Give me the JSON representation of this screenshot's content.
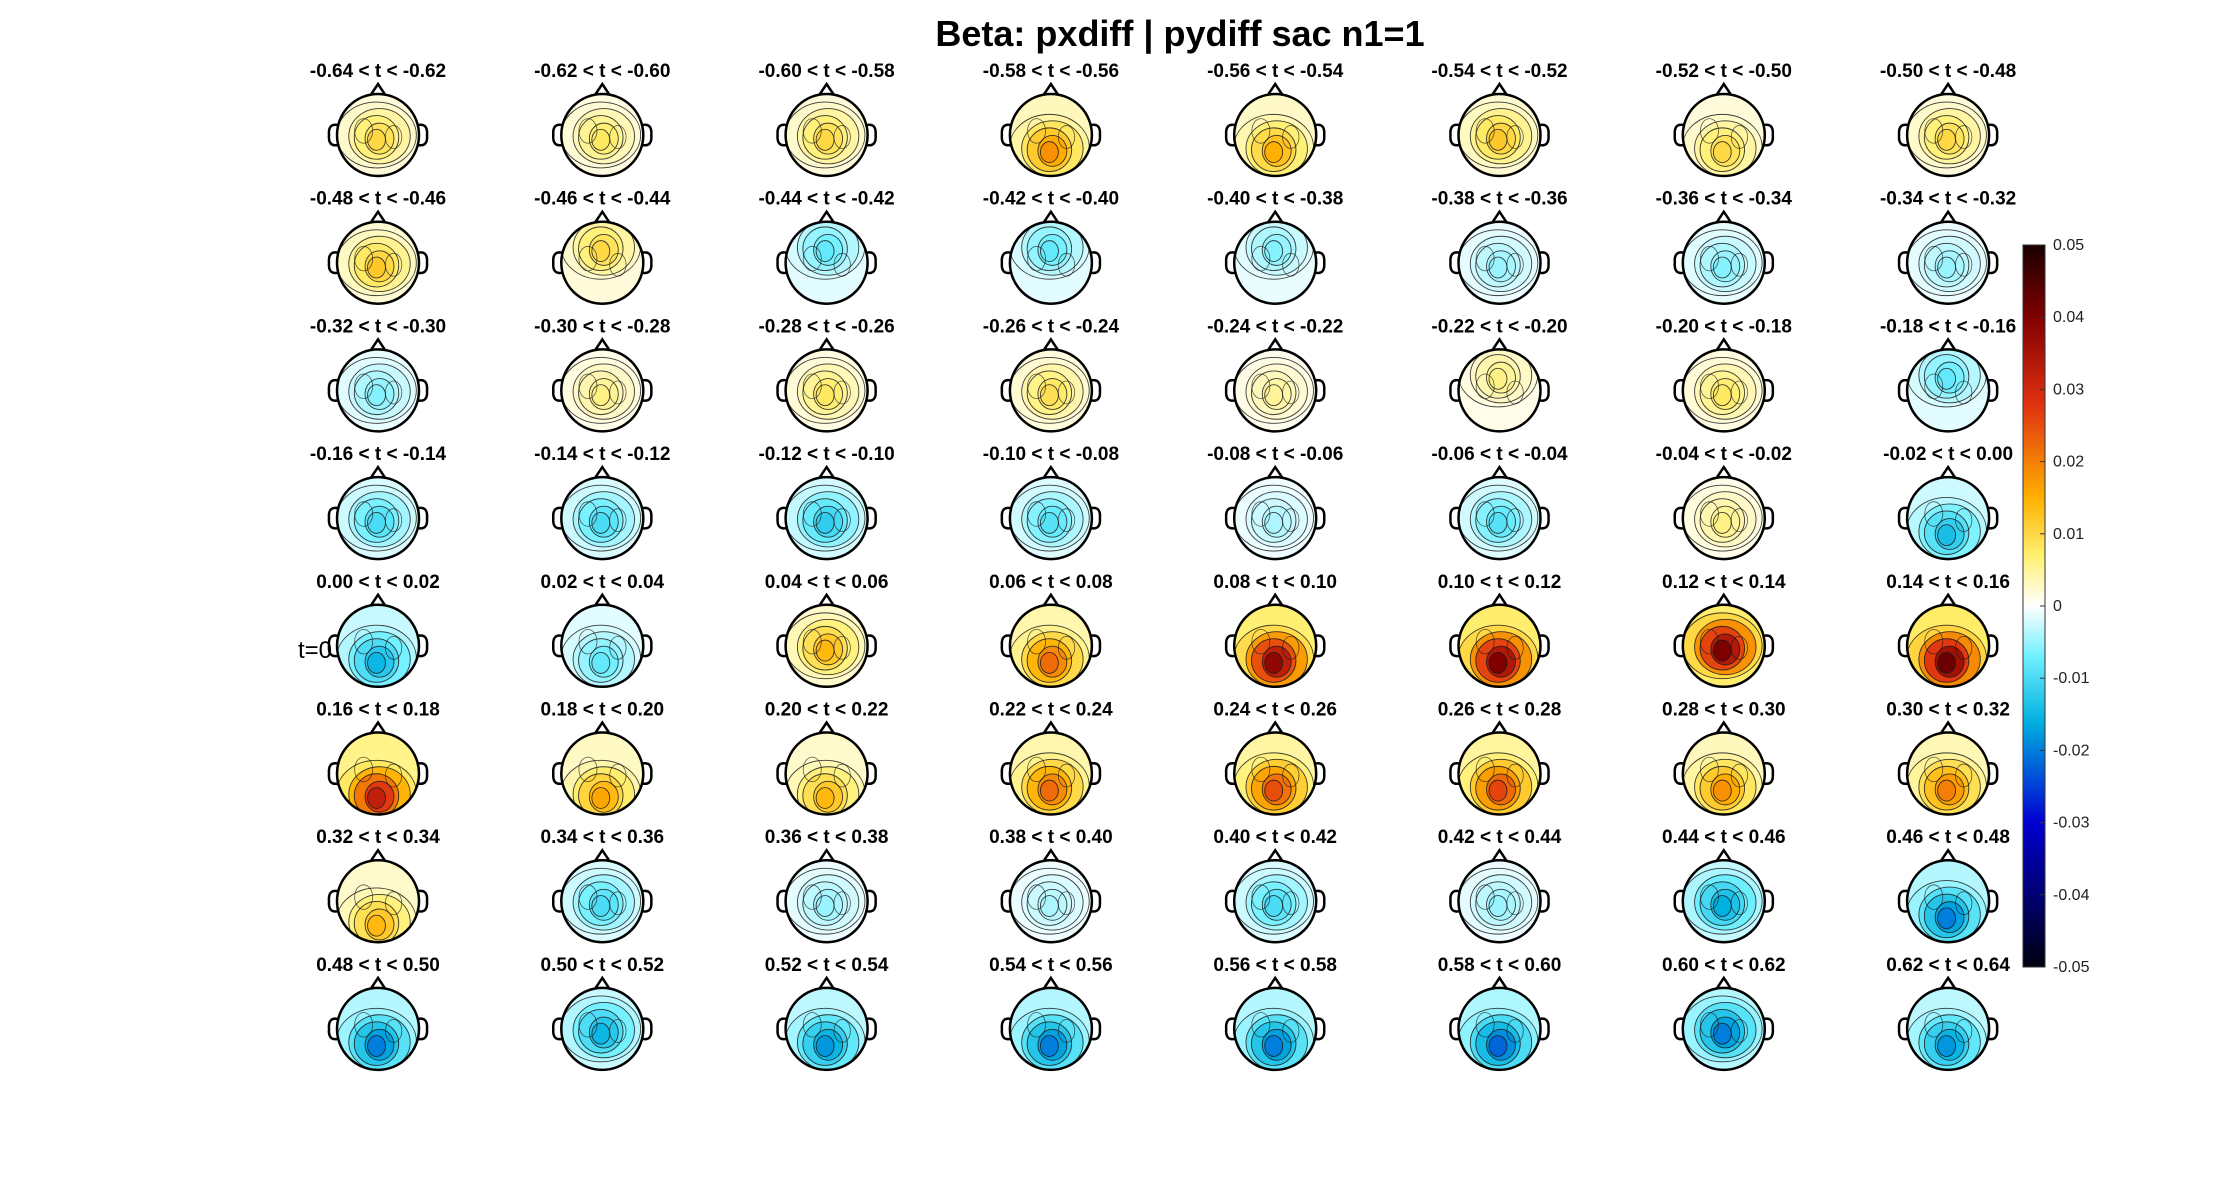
{
  "figure_title": "Beta: pxdiff | pydiff sac  n1=1",
  "chart_data": {
    "type": "heatmap",
    "subtype": "scalp-topography-grid",
    "title": "Beta: pxdiff | pydiff sac  n1=1",
    "grid": {
      "rows": 8,
      "cols": 8
    },
    "colormap": "blue-cyan-white-yellow-red-black",
    "clim": [
      -0.05,
      0.05
    ],
    "colorbar_ticks": [
      "0.05",
      "0.04",
      "0.03",
      "0.02",
      "0.01",
      "0",
      "-0.01",
      "-0.02",
      "-0.03",
      "-0.04",
      "-0.05"
    ],
    "colorbar_tick_values": [
      0.05,
      0.04,
      0.03,
      0.02,
      0.01,
      0,
      -0.01,
      -0.02,
      -0.03,
      -0.04,
      -0.05
    ],
    "onset_marker": "t=0",
    "panels": [
      {
        "label": "-0.64 < t < -0.62",
        "peak": 0.01,
        "peak_loc": "central"
      },
      {
        "label": "-0.62 < t < -0.60",
        "peak": 0.008,
        "peak_loc": "central"
      },
      {
        "label": "-0.60 < t < -0.58",
        "peak": 0.01,
        "peak_loc": "central"
      },
      {
        "label": "-0.58 < t < -0.56",
        "peak": 0.018,
        "peak_loc": "parietal"
      },
      {
        "label": "-0.56 < t < -0.54",
        "peak": 0.015,
        "peak_loc": "parietal"
      },
      {
        "label": "-0.54 < t < -0.52",
        "peak": 0.012,
        "peak_loc": "central"
      },
      {
        "label": "-0.52 < t < -0.50",
        "peak": 0.01,
        "peak_loc": "parietal"
      },
      {
        "label": "-0.50 < t < -0.48",
        "peak": 0.01,
        "peak_loc": "central"
      },
      {
        "label": "-0.48 < t < -0.46",
        "peak": 0.012,
        "peak_loc": "central"
      },
      {
        "label": "-0.46 < t < -0.44",
        "peak": 0.01,
        "peak_loc": "frontal"
      },
      {
        "label": "-0.44 < t < -0.42",
        "peak": -0.008,
        "peak_loc": "frontal"
      },
      {
        "label": "-0.42 < t < -0.40",
        "peak": -0.008,
        "peak_loc": "frontal"
      },
      {
        "label": "-0.40 < t < -0.38",
        "peak": -0.006,
        "peak_loc": "frontal"
      },
      {
        "label": "-0.38 < t < -0.36",
        "peak": -0.005,
        "peak_loc": "central"
      },
      {
        "label": "-0.36 < t < -0.34",
        "peak": -0.006,
        "peak_loc": "central"
      },
      {
        "label": "-0.34 < t < -0.32",
        "peak": -0.005,
        "peak_loc": "central"
      },
      {
        "label": "-0.32 < t < -0.30",
        "peak": -0.006,
        "peak_loc": "central"
      },
      {
        "label": "-0.30 < t < -0.28",
        "peak": 0.006,
        "peak_loc": "central"
      },
      {
        "label": "-0.28 < t < -0.26",
        "peak": 0.008,
        "peak_loc": "central"
      },
      {
        "label": "-0.26 < t < -0.24",
        "peak": 0.009,
        "peak_loc": "central"
      },
      {
        "label": "-0.24 < t < -0.22",
        "peak": 0.005,
        "peak_loc": "central"
      },
      {
        "label": "-0.22 < t < -0.20",
        "peak": 0.006,
        "peak_loc": "frontal"
      },
      {
        "label": "-0.20 < t < -0.18",
        "peak": 0.008,
        "peak_loc": "central"
      },
      {
        "label": "-0.18 < t < -0.16",
        "peak": -0.008,
        "peak_loc": "frontal"
      },
      {
        "label": "-0.16 < t < -0.14",
        "peak": -0.01,
        "peak_loc": "central"
      },
      {
        "label": "-0.14 < t < -0.12",
        "peak": -0.01,
        "peak_loc": "central"
      },
      {
        "label": "-0.12 < t < -0.10",
        "peak": -0.012,
        "peak_loc": "central"
      },
      {
        "label": "-0.10 < t < -0.08",
        "peak": -0.009,
        "peak_loc": "central"
      },
      {
        "label": "-0.08 < t < -0.06",
        "peak": -0.004,
        "peak_loc": "central"
      },
      {
        "label": "-0.06 < t < -0.04",
        "peak": -0.009,
        "peak_loc": "central"
      },
      {
        "label": "-0.04 < t < -0.02",
        "peak": 0.006,
        "peak_loc": "central"
      },
      {
        "label": "-0.02 < t < 0.00",
        "peak": -0.014,
        "peak_loc": "parietal"
      },
      {
        "label": "0.00 < t < 0.02",
        "peak": -0.015,
        "peak_loc": "parietal"
      },
      {
        "label": "0.02 < t < 0.04",
        "peak": -0.008,
        "peak_loc": "parietal"
      },
      {
        "label": "0.04 < t < 0.06",
        "peak": 0.014,
        "peak_loc": "central"
      },
      {
        "label": "0.06 < t < 0.08",
        "peak": 0.022,
        "peak_loc": "parietal"
      },
      {
        "label": "0.08 < t < 0.10",
        "peak": 0.038,
        "peak_loc": "parietal"
      },
      {
        "label": "0.10 < t < 0.12",
        "peak": 0.04,
        "peak_loc": "parietal"
      },
      {
        "label": "0.12 < t < 0.14",
        "peak": 0.04,
        "peak_loc": "central"
      },
      {
        "label": "0.14 < t < 0.16",
        "peak": 0.042,
        "peak_loc": "parietal"
      },
      {
        "label": "0.16 < t < 0.18",
        "peak": 0.032,
        "peak_loc": "occipital"
      },
      {
        "label": "0.18 < t < 0.20",
        "peak": 0.016,
        "peak_loc": "occipital"
      },
      {
        "label": "0.20 < t < 0.22",
        "peak": 0.014,
        "peak_loc": "occipital"
      },
      {
        "label": "0.22 < t < 0.24",
        "peak": 0.022,
        "peak_loc": "parietal"
      },
      {
        "label": "0.24 < t < 0.26",
        "peak": 0.025,
        "peak_loc": "parietal"
      },
      {
        "label": "0.26 < t < 0.28",
        "peak": 0.026,
        "peak_loc": "parietal"
      },
      {
        "label": "0.28 < t < 0.30",
        "peak": 0.018,
        "peak_loc": "parietal"
      },
      {
        "label": "0.30 < t < 0.32",
        "peak": 0.02,
        "peak_loc": "parietal"
      },
      {
        "label": "0.32 < t < 0.34",
        "peak": 0.014,
        "peak_loc": "occipital"
      },
      {
        "label": "0.34 < t < 0.36",
        "peak": -0.01,
        "peak_loc": "central"
      },
      {
        "label": "0.36 < t < 0.38",
        "peak": -0.005,
        "peak_loc": "central"
      },
      {
        "label": "0.38 < t < 0.40",
        "peak": -0.004,
        "peak_loc": "central"
      },
      {
        "label": "0.40 < t < 0.42",
        "peak": -0.01,
        "peak_loc": "central"
      },
      {
        "label": "0.42 < t < 0.44",
        "peak": -0.005,
        "peak_loc": "central"
      },
      {
        "label": "0.44 < t < 0.46",
        "peak": -0.016,
        "peak_loc": "central"
      },
      {
        "label": "0.46 < t < 0.48",
        "peak": -0.02,
        "peak_loc": "parietal"
      },
      {
        "label": "0.48 < t < 0.50",
        "peak": -0.02,
        "peak_loc": "parietal"
      },
      {
        "label": "0.50 < t < 0.52",
        "peak": -0.015,
        "peak_loc": "central"
      },
      {
        "label": "0.52 < t < 0.54",
        "peak": -0.018,
        "peak_loc": "parietal"
      },
      {
        "label": "0.54 < t < 0.56",
        "peak": -0.02,
        "peak_loc": "parietal"
      },
      {
        "label": "0.56 < t < 0.58",
        "peak": -0.02,
        "peak_loc": "parietal"
      },
      {
        "label": "0.58 < t < 0.60",
        "peak": -0.022,
        "peak_loc": "parietal"
      },
      {
        "label": "0.60 < t < 0.62",
        "peak": -0.02,
        "peak_loc": "central"
      },
      {
        "label": "0.62 < t < 0.64",
        "peak": -0.018,
        "peak_loc": "parietal"
      }
    ]
  }
}
